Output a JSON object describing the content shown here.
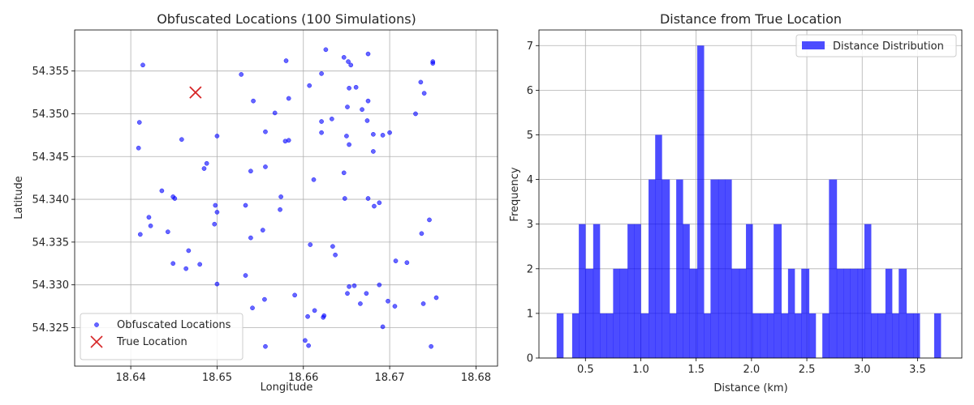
{
  "colors": {
    "blue": "#0000ff",
    "red": "#d62728",
    "grid": "#b0b0b0"
  },
  "chart_data": [
    {
      "type": "scatter",
      "title": "Obfuscated Locations (100 Simulations)",
      "xlabel": "Longitude",
      "ylabel": "Latitude",
      "xlim": [
        18.6335,
        18.6825
      ],
      "ylim": [
        54.3205,
        54.3598
      ],
      "xticks": [
        18.64,
        18.65,
        18.66,
        18.67,
        18.68
      ],
      "xtick_labels": [
        "18.64",
        "18.65",
        "18.66",
        "18.67",
        "18.68"
      ],
      "yticks": [
        54.325,
        54.33,
        54.335,
        54.34,
        54.345,
        54.35,
        54.355
      ],
      "ytick_labels": [
        "54.325",
        "54.330",
        "54.335",
        "54.340",
        "54.345",
        "54.350",
        "54.355"
      ],
      "grid": true,
      "legend_position": "lower-left",
      "series": [
        {
          "name": "Obfuscated Locations",
          "color": "#0000ff",
          "marker": "dot",
          "x": [
            18.6414,
            18.6647,
            18.6675,
            18.6626,
            18.658,
            18.6652,
            18.6655,
            18.675,
            18.675,
            18.6528,
            18.6621,
            18.674,
            18.6607,
            18.6653,
            18.6661,
            18.6736,
            18.6583,
            18.6542,
            18.6675,
            18.6651,
            18.6668,
            18.673,
            18.641,
            18.6567,
            18.6633,
            18.6621,
            18.6674,
            18.65,
            18.6459,
            18.6556,
            18.6621,
            18.665,
            18.6583,
            18.6579,
            18.6681,
            18.6692,
            18.67,
            18.6653,
            18.6409,
            18.6681,
            18.6488,
            18.6485,
            18.6556,
            18.6539,
            18.6647,
            18.6612,
            18.6436,
            18.6451,
            18.6449,
            18.6574,
            18.6533,
            18.6498,
            18.65,
            18.6648,
            18.6675,
            18.6688,
            18.6682,
            18.6573,
            18.6421,
            18.6746,
            18.6423,
            18.6497,
            18.6553,
            18.6443,
            18.6411,
            18.6539,
            18.6737,
            18.6608,
            18.6634,
            18.6467,
            18.6637,
            18.6707,
            18.672,
            18.6449,
            18.648,
            18.6464,
            18.6533,
            18.65,
            18.6653,
            18.6659,
            18.6688,
            18.659,
            18.6651,
            18.6673,
            18.6555,
            18.6698,
            18.6739,
            18.6706,
            18.6754,
            18.6541,
            18.6666,
            18.6613,
            18.6605,
            18.6624,
            18.6623,
            18.6692,
            18.6602,
            18.6606,
            18.6556,
            18.6748
          ],
          "y": [
            54.3557,
            54.3566,
            54.357,
            54.3575,
            54.3562,
            54.3561,
            54.3557,
            54.3561,
            54.3559,
            54.3546,
            54.3547,
            54.3524,
            54.3533,
            54.353,
            54.3531,
            54.3537,
            54.3518,
            54.3515,
            54.3515,
            54.3508,
            54.3505,
            54.35,
            54.349,
            54.3501,
            54.3494,
            54.3491,
            54.3492,
            54.3474,
            54.347,
            54.3479,
            54.3478,
            54.3474,
            54.3469,
            54.3468,
            54.3476,
            54.3475,
            54.3478,
            54.3464,
            54.346,
            54.3456,
            54.3442,
            54.3436,
            54.3438,
            54.3433,
            54.3431,
            54.3423,
            54.341,
            54.3401,
            54.3403,
            54.3403,
            54.3393,
            54.3393,
            54.3385,
            54.3401,
            54.3401,
            54.3396,
            54.3392,
            54.3388,
            54.3379,
            54.3376,
            54.3369,
            54.3371,
            54.3364,
            54.3362,
            54.3359,
            54.3355,
            54.336,
            54.3347,
            54.3345,
            54.334,
            54.3335,
            54.3328,
            54.3326,
            54.3325,
            54.3324,
            54.3319,
            54.3311,
            54.3301,
            54.3298,
            54.3299,
            54.33,
            54.3288,
            54.329,
            54.329,
            54.3283,
            54.3281,
            54.3278,
            54.3275,
            54.3285,
            54.3273,
            54.3278,
            54.327,
            54.3263,
            54.3264,
            54.3262,
            54.3251,
            54.3235,
            54.3229,
            54.3228,
            54.3228
          ]
        },
        {
          "name": "True Location",
          "color": "#d62728",
          "marker": "x",
          "x": [
            18.6475
          ],
          "y": [
            54.3525
          ]
        }
      ]
    },
    {
      "type": "bar",
      "title": "Distance from True Location",
      "xlabel": "Distance (km)",
      "ylabel": "Frequency",
      "xlim": [
        0.08,
        3.9
      ],
      "ylim": [
        0,
        7.35
      ],
      "xticks": [
        0.5,
        1.0,
        1.5,
        2.0,
        2.5,
        3.0,
        3.5
      ],
      "xtick_labels": [
        "0.5",
        "1.0",
        "1.5",
        "2.0",
        "2.5",
        "3.0",
        "3.5"
      ],
      "yticks": [
        0,
        1,
        2,
        3,
        4,
        5,
        6,
        7
      ],
      "ytick_labels": [
        "0",
        "1",
        "2",
        "3",
        "4",
        "5",
        "6",
        "7"
      ],
      "grid": true,
      "legend_position": "top-right",
      "series": [
        {
          "name": "Distance Distribution",
          "color": "#0000ff",
          "bins": [
            [
              0.24,
              0.3,
              1
            ],
            [
              0.38,
              0.44,
              1
            ],
            [
              0.44,
              0.5,
              3
            ],
            [
              0.5,
              0.57,
              2
            ],
            [
              0.57,
              0.63,
              3
            ],
            [
              0.63,
              0.69,
              1
            ],
            [
              0.69,
              0.75,
              1
            ],
            [
              0.75,
              0.81,
              2
            ],
            [
              0.81,
              0.88,
              2
            ],
            [
              0.88,
              0.94,
              3
            ],
            [
              0.94,
              1.0,
              3
            ],
            [
              1.0,
              1.07,
              1
            ],
            [
              1.07,
              1.13,
              4
            ],
            [
              1.13,
              1.19,
              5
            ],
            [
              1.19,
              1.26,
              4
            ],
            [
              1.26,
              1.32,
              1
            ],
            [
              1.32,
              1.38,
              4
            ],
            [
              1.38,
              1.44,
              3
            ],
            [
              1.44,
              1.51,
              2
            ],
            [
              1.51,
              1.57,
              7
            ],
            [
              1.57,
              1.63,
              1
            ],
            [
              1.63,
              1.7,
              4
            ],
            [
              1.7,
              1.76,
              4
            ],
            [
              1.76,
              1.82,
              4
            ],
            [
              1.82,
              1.89,
              2
            ],
            [
              1.89,
              1.95,
              2
            ],
            [
              1.95,
              2.01,
              3
            ],
            [
              2.01,
              2.08,
              1
            ],
            [
              2.08,
              2.14,
              1
            ],
            [
              2.14,
              2.2,
              1
            ],
            [
              2.2,
              2.27,
              3
            ],
            [
              2.27,
              2.33,
              1
            ],
            [
              2.33,
              2.39,
              2
            ],
            [
              2.39,
              2.45,
              1
            ],
            [
              2.45,
              2.52,
              2
            ],
            [
              2.52,
              2.58,
              1
            ],
            [
              2.64,
              2.7,
              1
            ],
            [
              2.7,
              2.77,
              4
            ],
            [
              2.77,
              2.83,
              2
            ],
            [
              2.83,
              2.89,
              2
            ],
            [
              2.89,
              2.96,
              2
            ],
            [
              2.96,
              3.02,
              2
            ],
            [
              3.02,
              3.08,
              3
            ],
            [
              3.08,
              3.14,
              1
            ],
            [
              3.14,
              3.21,
              1
            ],
            [
              3.21,
              3.27,
              2
            ],
            [
              3.27,
              3.33,
              1
            ],
            [
              3.33,
              3.4,
              2
            ],
            [
              3.4,
              3.46,
              1
            ],
            [
              3.46,
              3.52,
              1
            ],
            [
              3.65,
              3.71,
              1
            ]
          ]
        }
      ]
    }
  ]
}
